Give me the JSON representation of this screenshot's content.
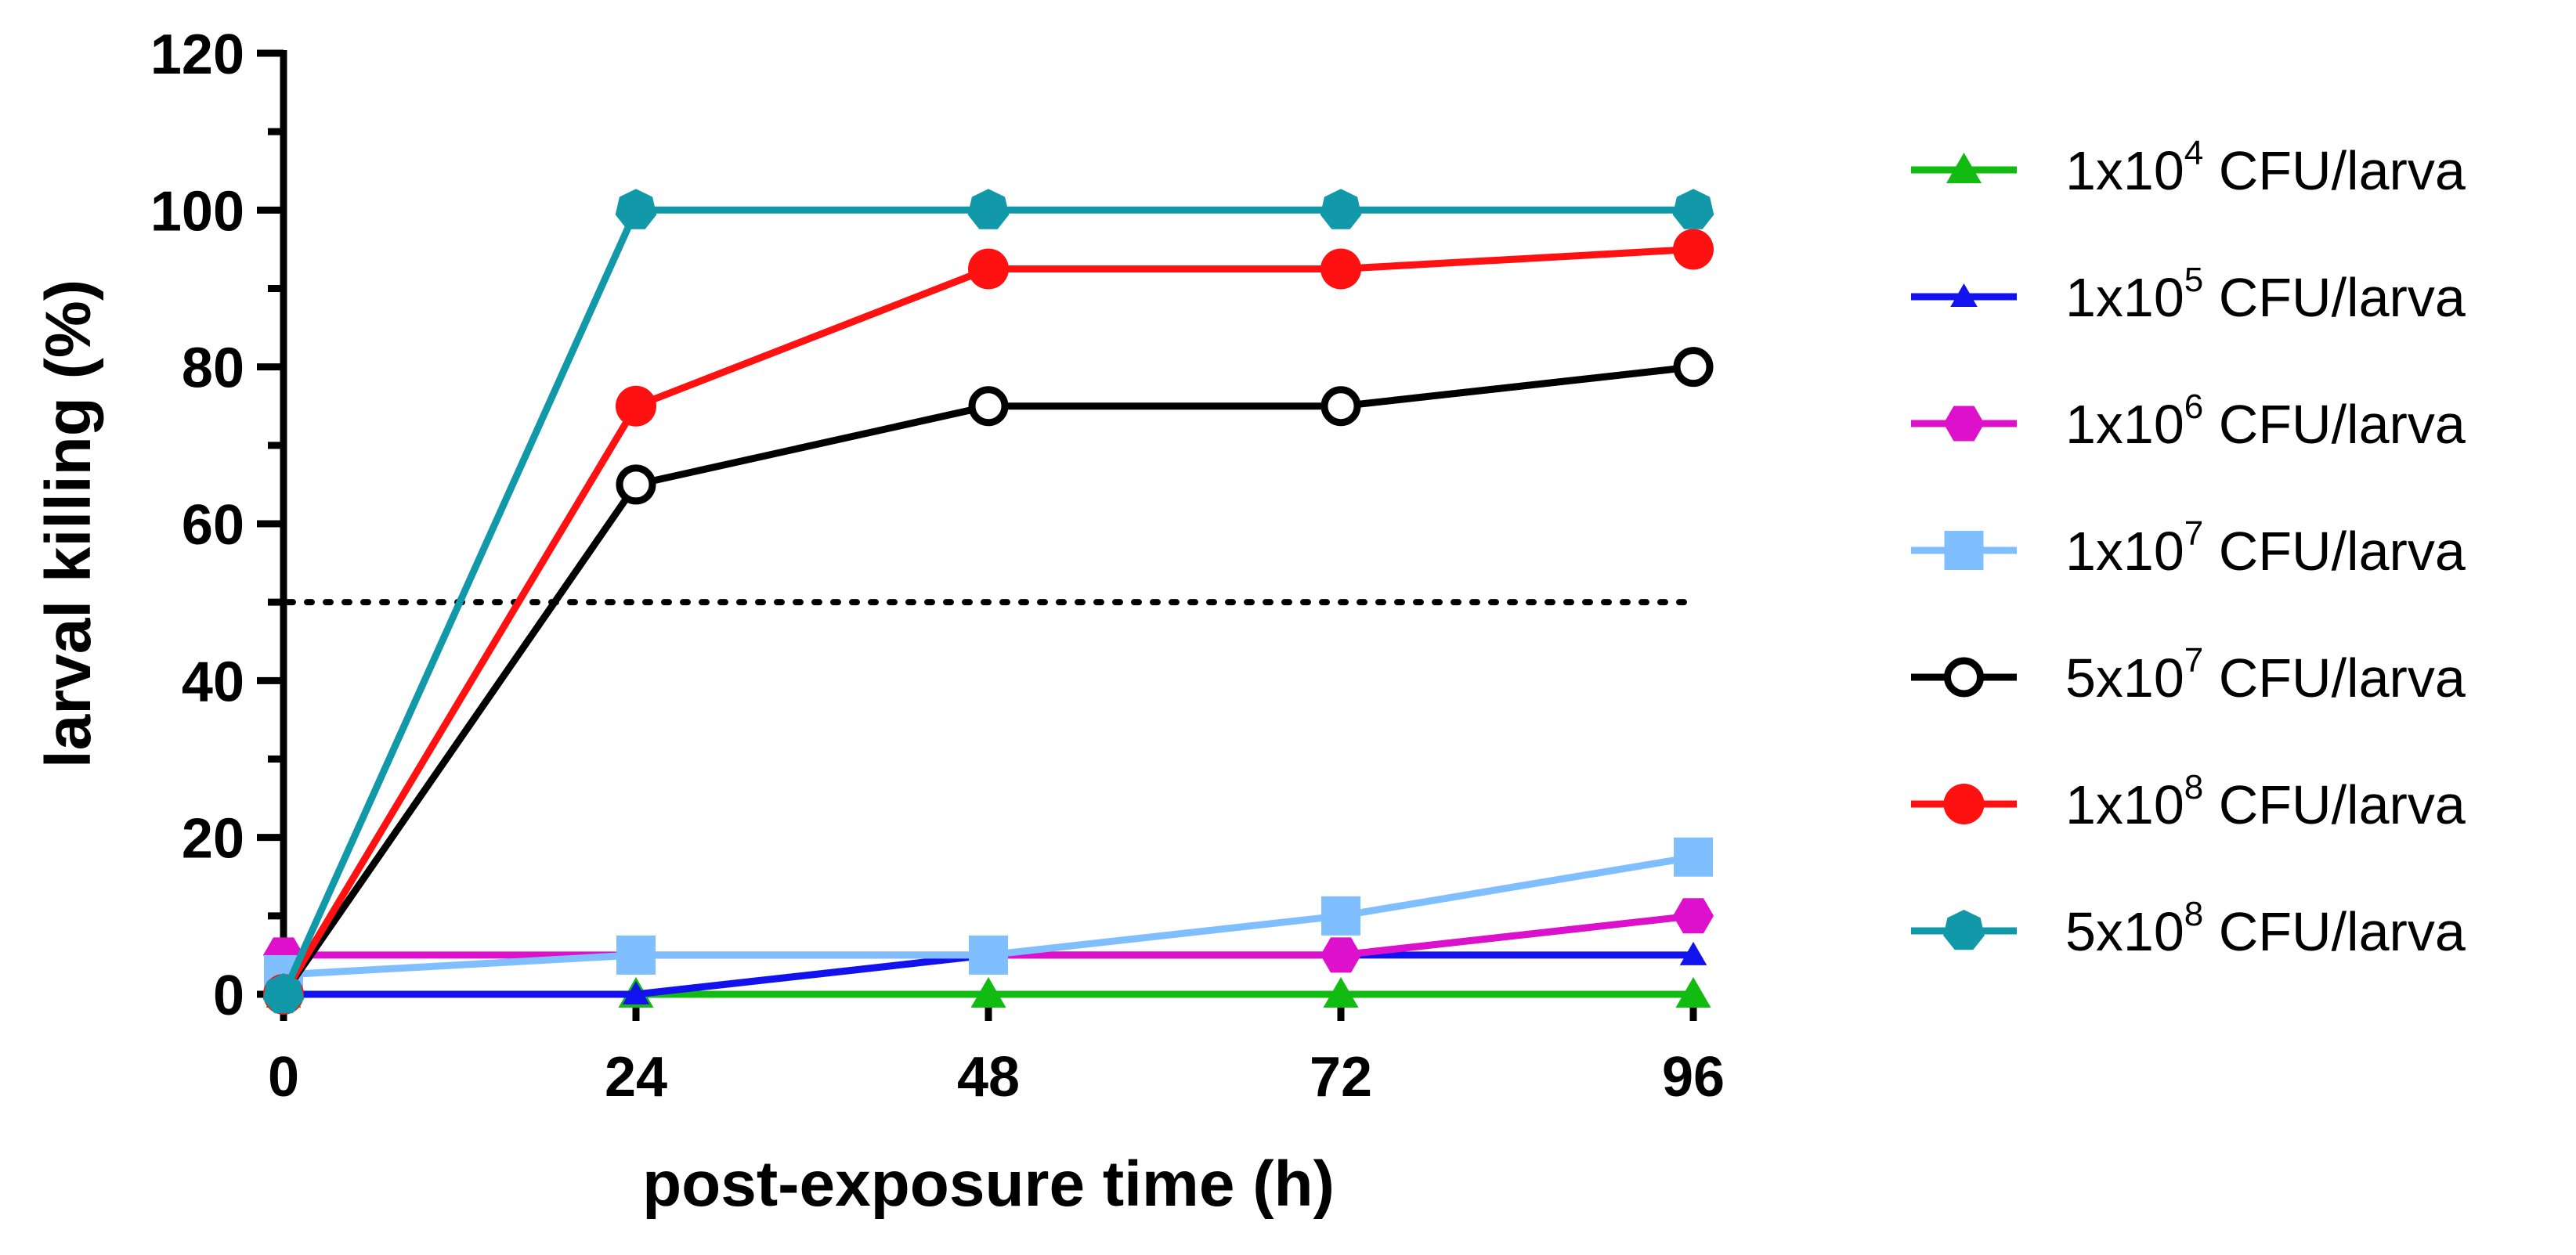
{
  "chart_data": {
    "type": "line",
    "title": "",
    "xlabel": "post-exposure time (h)",
    "ylabel": "larval killing (%)",
    "x": [
      0,
      24,
      48,
      72,
      96
    ],
    "x_tick_labels": [
      "0",
      "24",
      "48",
      "72",
      "96"
    ],
    "y_tick_labels": [
      "0",
      "20",
      "40",
      "60",
      "80",
      "100",
      "120"
    ],
    "y_ticks": [
      0,
      20,
      40,
      60,
      80,
      100,
      120
    ],
    "xlim": [
      0,
      96
    ],
    "ylim": [
      0,
      120
    ],
    "grid": false,
    "reference_line": {
      "y": 50,
      "style": "dotted"
    },
    "legend_position": "right",
    "series": [
      {
        "name": "1x10^4 CFU/larva",
        "label_base": "1x10",
        "label_exp": "4",
        "label_suffix": " CFU/larva",
        "color": "#11bb11",
        "marker": "triangle",
        "values": [
          0,
          0,
          0,
          0,
          0
        ]
      },
      {
        "name": "1x10^5 CFU/larva",
        "label_base": "1x10",
        "label_exp": "5",
        "label_suffix": " CFU/larva",
        "color": "#1212ee",
        "marker": "triangle-small",
        "values": [
          0,
          0,
          5,
          5,
          5
        ]
      },
      {
        "name": "1x10^6 CFU/larva",
        "label_base": "1x10",
        "label_exp": "6",
        "label_suffix": " CFU/larva",
        "color": "#dd11cc",
        "marker": "hexagon",
        "values": [
          5,
          5,
          5,
          5,
          10
        ]
      },
      {
        "name": "1x10^7 CFU/larva",
        "label_base": "1x10",
        "label_exp": "7",
        "label_suffix": " CFU/larva",
        "color": "#7fbfff",
        "marker": "square",
        "values": [
          2.5,
          5,
          5,
          10,
          17.5
        ]
      },
      {
        "name": "5x10^7 CFU/larva",
        "label_base": "5x10",
        "label_exp": "7",
        "label_suffix": " CFU/larva",
        "color": "#000000",
        "marker": "open-circle",
        "values": [
          0,
          65,
          75,
          75,
          80
        ]
      },
      {
        "name": "1x10^8 CFU/larva",
        "label_base": "1x10",
        "label_exp": "8",
        "label_suffix": " CFU/larva",
        "color": "#ff1111",
        "marker": "circle",
        "values": [
          0,
          75,
          92.5,
          92.5,
          95
        ]
      },
      {
        "name": "5x10^8 CFU/larva",
        "label_base": "5x10",
        "label_exp": "8",
        "label_suffix": " CFU/larva",
        "color": "#1199aa",
        "marker": "heptagon",
        "values": [
          0,
          100,
          100,
          100,
          100
        ]
      }
    ]
  }
}
